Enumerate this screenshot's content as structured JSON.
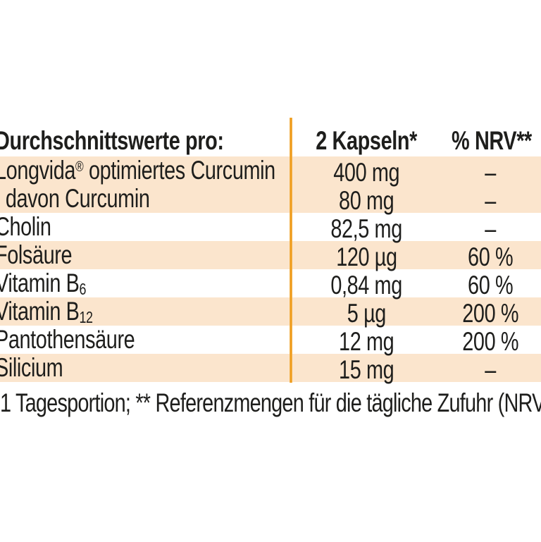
{
  "page": {
    "background_color": "#ffffff",
    "text_color": "#1e1e1c"
  },
  "table": {
    "accent_line_color": "#ef9d1f",
    "row_highlight_color": "#fbe5cd",
    "header": {
      "col1": "Durchschnittswerte pro:",
      "col2": "2 Kapseln*",
      "col3": "% NRV**"
    },
    "rows": [
      {
        "name_pre": "Longvida",
        "name_sup": "®",
        "name_sub": "",
        "name_post": " optimiertes Curcumin",
        "value": "400 mg",
        "nrv": "–"
      },
      {
        "name_pre": "davon Curcumin",
        "name_sup": "",
        "name_sub": "",
        "name_post": "",
        "value": "80 mg",
        "nrv": "–"
      },
      {
        "name_pre": "Cholin",
        "name_sup": "",
        "name_sub": "",
        "name_post": "",
        "value": "82,5 mg",
        "nrv": "–"
      },
      {
        "name_pre": "Folsäure",
        "name_sup": "",
        "name_sub": "",
        "name_post": "",
        "value": "120 µg",
        "nrv": "60 %"
      },
      {
        "name_pre": "Vitamin B",
        "name_sup": "",
        "name_sub": "6",
        "name_post": "",
        "value": "0,84 mg",
        "nrv": "60 %"
      },
      {
        "name_pre": "Vitamin B",
        "name_sup": "",
        "name_sub": "12",
        "name_post": "",
        "value": "5 µg",
        "nrv": "200 %"
      },
      {
        "name_pre": "Pantothensäure",
        "name_sup": "",
        "name_sub": "",
        "name_post": "",
        "value": "12 mg",
        "nrv": "200 %"
      },
      {
        "name_pre": "Silicium",
        "name_sup": "",
        "name_sub": "",
        "name_post": "",
        "value": "15 mg",
        "nrv": "–"
      }
    ]
  },
  "footnote": "1 Tagesportion; ** Referenzmengen für die tägliche Zufuhr (NRV"
}
